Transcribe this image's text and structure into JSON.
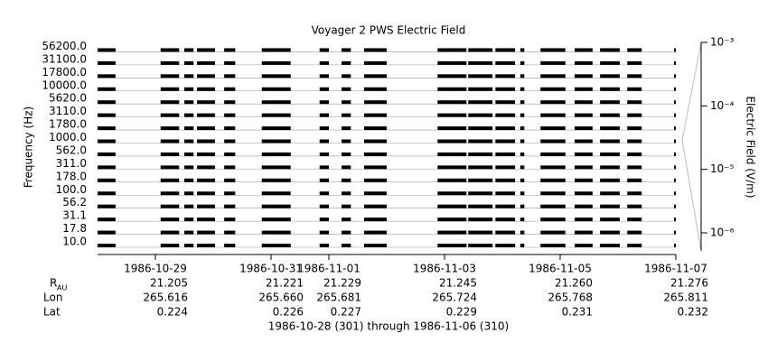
{
  "chart_data": {
    "type": "strip",
    "title": "Voyager 2 PWS Electric Field",
    "ylabel": "Frequency (Hz)",
    "y2label": "Electric Field (V/m)",
    "channels": [
      "56200.0",
      "31100.0",
      "17800.0",
      "10000.0",
      "5620.0",
      "3110.0",
      "1780.0",
      "1000.0",
      "562.0",
      "311.0",
      "178.0",
      "100.0",
      "56.2",
      "31.1",
      "17.8",
      "10.0"
    ],
    "color": "#000000",
    "xlim": [
      301,
      311
    ],
    "xticks": [
      {
        "value": 302,
        "label": "1986-10-29"
      },
      {
        "value": 304,
        "label": "1986-10-31"
      },
      {
        "value": 305,
        "label": "1986-11-01"
      },
      {
        "value": 307,
        "label": "1986-11-03"
      },
      {
        "value": 309,
        "label": "1986-11-05"
      },
      {
        "value": 311,
        "label": "1986-11-07"
      }
    ],
    "intervals": [
      [
        301.0,
        301.31
      ],
      [
        302.09,
        302.41
      ],
      [
        302.5,
        302.66
      ],
      [
        302.72,
        303.03
      ],
      [
        303.19,
        303.38
      ],
      [
        303.84,
        304.34
      ],
      [
        304.84,
        305.0
      ],
      [
        305.22,
        305.38
      ],
      [
        305.61,
        306.0
      ],
      [
        306.88,
        307.38
      ],
      [
        307.41,
        307.83
      ],
      [
        307.88,
        308.22
      ],
      [
        308.31,
        308.38
      ],
      [
        308.66,
        309.09
      ],
      [
        309.25,
        309.56
      ],
      [
        309.69,
        310.03
      ],
      [
        310.16,
        310.41
      ],
      [
        310.97,
        311.0
      ]
    ],
    "y2lim": [
      5.2e-07,
      0.001
    ],
    "y2log": true,
    "y2ticks": [
      {
        "value": 0.001,
        "label": "10⁻³"
      },
      {
        "value": 0.0001,
        "label": "10⁻⁴"
      },
      {
        "value": 1e-05,
        "label": "10⁻⁵"
      },
      {
        "value": 1e-06,
        "label": "10⁻⁶"
      }
    ],
    "ephemeris": [
      {
        "name": "R",
        "subscript": "AU",
        "values": [
          "21.205",
          "21.221",
          "21.229",
          "21.245",
          "21.260",
          "21.276"
        ]
      },
      {
        "name": "Lon",
        "values": [
          "265.616",
          "265.660",
          "265.681",
          "265.724",
          "265.768",
          "265.811"
        ]
      },
      {
        "name": "Lat",
        "values": [
          "0.224",
          "0.226",
          "0.227",
          "0.229",
          "0.231",
          "0.232"
        ]
      }
    ],
    "footer": "1986-10-28 (301) through 1986-11-06 (310)"
  }
}
